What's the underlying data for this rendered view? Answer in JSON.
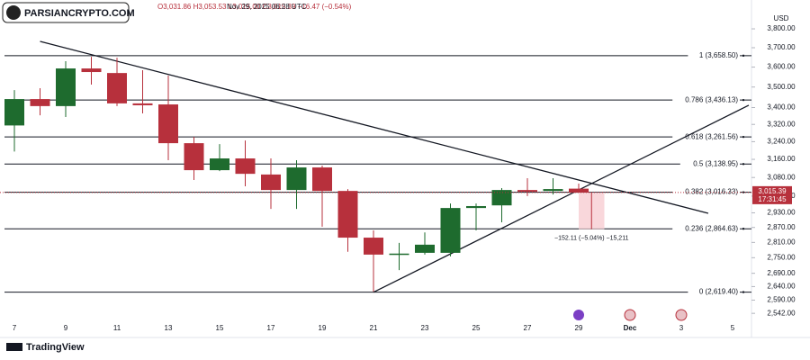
{
  "header": {
    "ohlc": "O3,031.86 H3,053.53 L3,015.00 C3,015.39 −16.47 (−0.54%)",
    "date": "Nov 29, 2025 06:28 UTC",
    "watermark": "PARSIANCRYPTO.COM",
    "logo": "TradingView"
  },
  "chart_data": {
    "type": "candlestick",
    "currency": "USD",
    "log_scale": true,
    "grid": false,
    "up_color": "#1e6b2e",
    "down_color": "#b7303c",
    "categories": [
      "7",
      null,
      "9",
      null,
      "11",
      null,
      "13",
      null,
      "15",
      null,
      "17",
      null,
      "19",
      null,
      "21",
      null,
      "23",
      null,
      "25",
      null,
      "27",
      null,
      "29",
      null,
      "Dec",
      null,
      "3",
      null,
      "5"
    ],
    "open": [
      3315,
      3441,
      3407,
      3593,
      3570,
      3420,
      3415,
      3233,
      3112,
      3164,
      3093,
      3026,
      3124,
      3022,
      2829,
      2762,
      2769,
      2769,
      2950,
      2961,
      3026,
      3022,
      3031.86,
      null,
      null,
      null,
      null,
      null,
      null
    ],
    "high": [
      3485,
      3494,
      3630,
      3653,
      3648,
      3584,
      3557,
      3262,
      3229,
      3245,
      3164,
      3156,
      3132,
      3030,
      2858,
      2808,
      2850,
      2969,
      2969,
      3034,
      3077,
      3077,
      3053.53,
      null,
      null,
      null,
      null,
      null,
      null
    ],
    "low": [
      3195,
      3363,
      3355,
      3512,
      3407,
      3372,
      3156,
      3069,
      3108,
      3042,
      2946,
      2946,
      2873,
      2773,
      2621,
      2702,
      2762,
      2755,
      2858,
      2891,
      3000,
      3007,
      3015.0,
      null,
      null,
      null,
      null,
      null,
      null
    ],
    "close": [
      3441,
      3407,
      3593,
      3575,
      3420,
      3411,
      3233,
      3112,
      3164,
      3096,
      3026,
      3124,
      3022,
      2829,
      2762,
      2766,
      2801,
      2950,
      2958,
      3026,
      3019,
      3030,
      3015.39,
      null,
      null,
      null,
      null,
      null,
      null
    ],
    "ylim": [
      2504,
      3918
    ],
    "yticks": [
      {
        "value": 2542,
        "label": "2,542.00"
      },
      {
        "value": 2590,
        "label": "2,590.00"
      },
      {
        "value": 2640,
        "label": "2,640.00"
      },
      {
        "value": 2690,
        "label": "2,690.00"
      },
      {
        "value": 2750,
        "label": "2,750.00"
      },
      {
        "value": 2810,
        "label": "2,810.00"
      },
      {
        "value": 2870,
        "label": "2,870.00"
      },
      {
        "value": 2930,
        "label": "2,930.00"
      },
      {
        "value": 3000,
        "label": "3,000.00"
      },
      {
        "value": 3080,
        "label": "3,080.00"
      },
      {
        "value": 3160,
        "label": "3,160.00"
      },
      {
        "value": 3240,
        "label": "3,240.00"
      },
      {
        "value": 3320,
        "label": "3,320.00"
      },
      {
        "value": 3400,
        "label": "3,400.00"
      },
      {
        "value": 3500,
        "label": "3,500.00"
      },
      {
        "value": 3600,
        "label": "3,600.00"
      },
      {
        "value": 3700,
        "label": "3,700.00"
      },
      {
        "value": 3800,
        "label": "3,800.00"
      }
    ],
    "fib_levels": [
      {
        "value": 3658.5,
        "label": "1 (3,658.50)"
      },
      {
        "value": 3436.13,
        "label": "0.786 (3,436.13)"
      },
      {
        "value": 3261.56,
        "label": "0.618 (3,261.56)"
      },
      {
        "value": 3138.95,
        "label": "0.5 (3,138.95)"
      },
      {
        "value": 3016.33,
        "label": "0.382 (3,016.33)"
      },
      {
        "value": 2864.63,
        "label": "0.236 (2,864.63)"
      },
      {
        "value": 2619.4,
        "label": "0 (2,619.40)"
      }
    ],
    "trend_lines": [
      {
        "x": [
          1,
          27.05
        ],
        "y": [
          3733,
          2928
        ]
      },
      {
        "x": [
          14,
          28.63
        ],
        "y": [
          2619,
          3411
        ]
      }
    ],
    "measure": {
      "x": [
        22,
        23
      ],
      "from": 3015.39,
      "to": 2863.28,
      "label": "−152.11 (−5.04%) −15,211"
    },
    "last_price": {
      "value": 3015.39,
      "label": "3,015.39",
      "countdown": "17:31:45"
    }
  }
}
